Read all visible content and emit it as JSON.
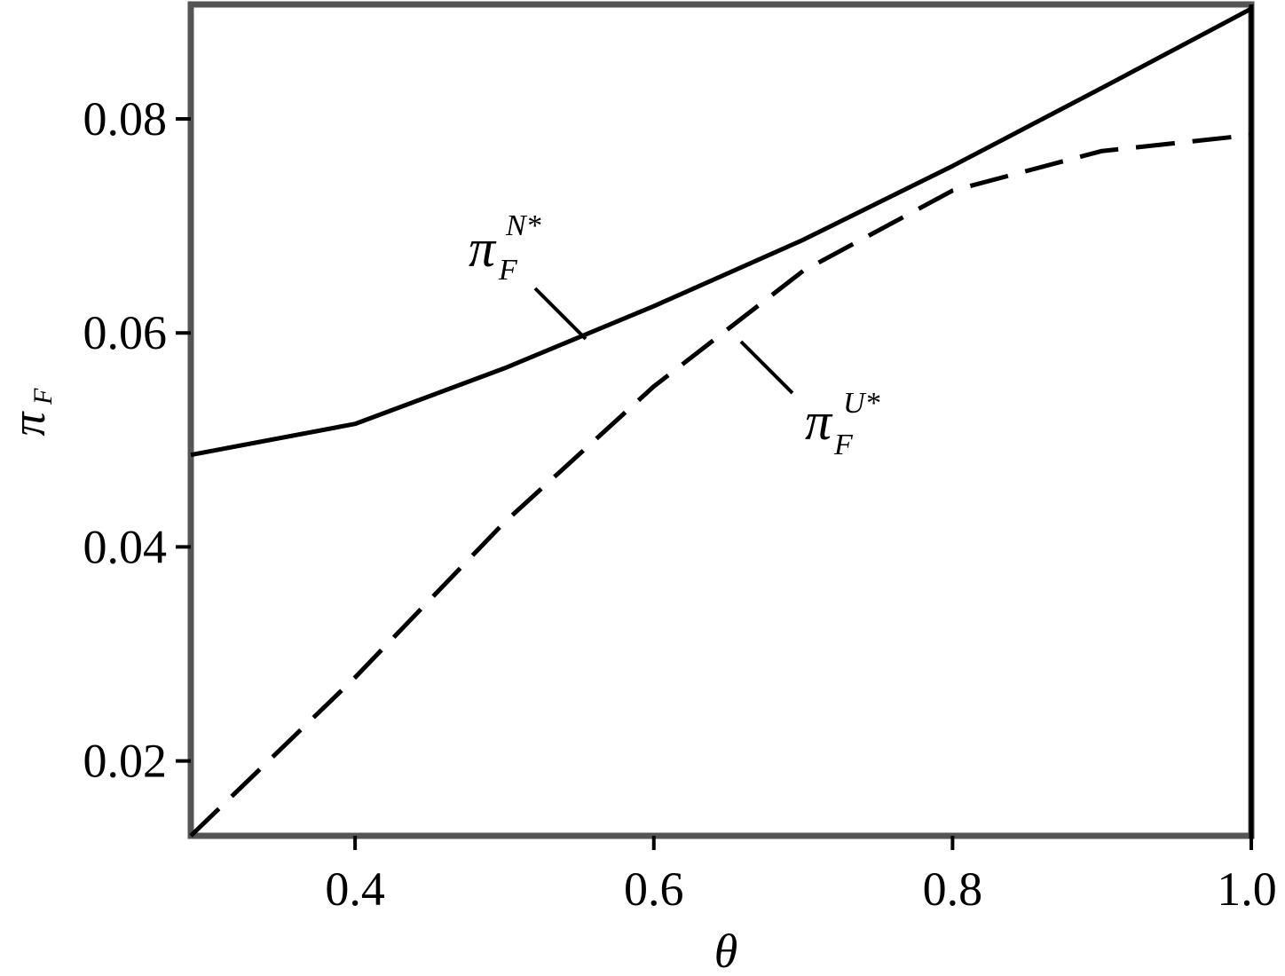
{
  "chart_data": {
    "type": "line",
    "x": [
      0.29,
      0.4,
      0.5,
      0.6,
      0.7,
      0.8,
      0.9,
      1.0
    ],
    "series": [
      {
        "color": "#000000",
        "dash": "solid",
        "values": [
          0.0486,
          0.0515,
          0.0567,
          0.0625,
          0.0687,
          0.0756,
          0.0829,
          0.0903
        ]
      },
      {
        "color": "#000000",
        "dash": "dashed",
        "values": [
          0.013,
          0.0278,
          0.0423,
          0.055,
          0.0658,
          0.0733,
          0.077,
          0.0785
        ]
      }
    ],
    "xlim": [
      0.29,
      1.0
    ],
    "xticks": [
      0.4,
      0.6,
      0.8,
      {
        "value": 1.0,
        "label": "1.0"
      }
    ],
    "ylim": [
      0.013,
      0.0907
    ],
    "yticks": [
      0.02,
      0.04,
      0.06,
      0.08
    ],
    "x_label": "θ",
    "y_label": {
      "symbol": "π",
      "sub": "F"
    },
    "annotations": [
      {
        "symbol": "π",
        "sub": "F",
        "sup": "N*"
      },
      {
        "symbol": "π",
        "sub": "F",
        "sup": "U*"
      }
    ]
  }
}
